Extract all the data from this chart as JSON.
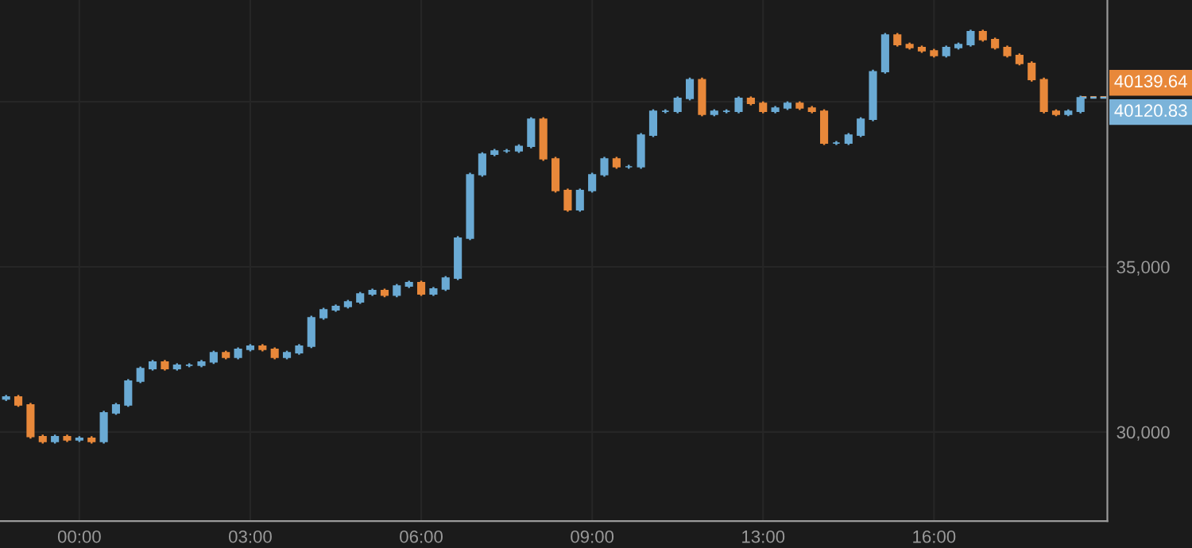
{
  "chart_data": {
    "type": "candlestick",
    "categories": [
      null,
      null,
      null,
      null,
      null,
      null,
      "00:00",
      null,
      null,
      null,
      null,
      null,
      null,
      null,
      null,
      null,
      null,
      null,
      null,
      null,
      "03:00",
      null,
      null,
      null,
      null,
      null,
      null,
      null,
      null,
      null,
      null,
      null,
      null,
      null,
      "06:00",
      null,
      null,
      null,
      null,
      null,
      null,
      null,
      null,
      null,
      null,
      null,
      null,
      null,
      "09:00",
      null,
      null,
      null,
      null,
      null,
      null,
      null,
      null,
      null,
      null,
      null,
      null,
      null,
      "13:00",
      null,
      null,
      null,
      null,
      null,
      null,
      null,
      null,
      null,
      null,
      null,
      null,
      null,
      "16:00",
      null,
      null,
      null,
      null,
      null,
      null,
      null,
      null,
      null,
      null,
      null,
      null
    ],
    "ohlc": [
      [
        31000,
        31120,
        30940,
        31060
      ],
      [
        31060,
        31120,
        30760,
        30820
      ],
      [
        30820,
        30880,
        29800,
        29860
      ],
      [
        29860,
        29920,
        29650,
        29710
      ],
      [
        29710,
        29920,
        29650,
        29860
      ],
      [
        29860,
        29920,
        29700,
        29760
      ],
      [
        29760,
        29870,
        29700,
        29810
      ],
      [
        29810,
        29870,
        29650,
        29710
      ],
      [
        29710,
        30640,
        29650,
        30580
      ],
      [
        30580,
        30880,
        30520,
        30820
      ],
      [
        30820,
        31600,
        30760,
        31540
      ],
      [
        31540,
        31980,
        31480,
        31920
      ],
      [
        31920,
        32180,
        31860,
        32120
      ],
      [
        32120,
        32180,
        31860,
        31920
      ],
      [
        31920,
        32080,
        31860,
        32020
      ],
      [
        32020,
        32080,
        31960,
        32020
      ],
      [
        32020,
        32180,
        31960,
        32120
      ],
      [
        32120,
        32460,
        32060,
        32400
      ],
      [
        32400,
        32460,
        32200,
        32260
      ],
      [
        32260,
        32560,
        32200,
        32500
      ],
      [
        32500,
        32660,
        32440,
        32600
      ],
      [
        32600,
        32660,
        32440,
        32500
      ],
      [
        32500,
        32560,
        32200,
        32260
      ],
      [
        32260,
        32460,
        32200,
        32400
      ],
      [
        32400,
        32660,
        32340,
        32600
      ],
      [
        32600,
        33520,
        32540,
        33460
      ],
      [
        33460,
        33760,
        33400,
        33700
      ],
      [
        33700,
        33860,
        33640,
        33800
      ],
      [
        33800,
        34000,
        33740,
        33940
      ],
      [
        33940,
        34240,
        33880,
        34180
      ],
      [
        34180,
        34340,
        34120,
        34280
      ],
      [
        34280,
        34340,
        34080,
        34140
      ],
      [
        34140,
        34480,
        34080,
        34420
      ],
      [
        34420,
        34580,
        34360,
        34520
      ],
      [
        34520,
        34580,
        34120,
        34180
      ],
      [
        34180,
        34390,
        34120,
        34330
      ],
      [
        34330,
        34720,
        34270,
        34660
      ],
      [
        34660,
        35930,
        34600,
        35870
      ],
      [
        35870,
        37850,
        35810,
        37790
      ],
      [
        37790,
        38470,
        37730,
        38410
      ],
      [
        38410,
        38570,
        38350,
        38510
      ],
      [
        38510,
        38570,
        38450,
        38510
      ],
      [
        38510,
        38710,
        38450,
        38650
      ],
      [
        38650,
        39530,
        38590,
        39470
      ],
      [
        39470,
        39530,
        38210,
        38270
      ],
      [
        38270,
        38330,
        37250,
        37310
      ],
      [
        37310,
        37370,
        36670,
        36730
      ],
      [
        36730,
        37370,
        36670,
        37310
      ],
      [
        37310,
        37850,
        37250,
        37790
      ],
      [
        37790,
        38330,
        37730,
        38270
      ],
      [
        38270,
        38330,
        37970,
        38030
      ],
      [
        38030,
        38090,
        37970,
        38030
      ],
      [
        38030,
        39050,
        37970,
        38990
      ],
      [
        38990,
        39770,
        38930,
        39710
      ],
      [
        39710,
        39770,
        39650,
        39710
      ],
      [
        39710,
        40160,
        39650,
        40100
      ],
      [
        40100,
        40730,
        40040,
        40670
      ],
      [
        40670,
        40730,
        39560,
        39620
      ],
      [
        39620,
        39770,
        39560,
        39710
      ],
      [
        39710,
        39770,
        39650,
        39710
      ],
      [
        39710,
        40160,
        39650,
        40100
      ],
      [
        40100,
        40160,
        39890,
        39950
      ],
      [
        39950,
        40010,
        39650,
        39710
      ],
      [
        39710,
        39870,
        39650,
        39810
      ],
      [
        39810,
        40010,
        39750,
        39950
      ],
      [
        39950,
        40010,
        39750,
        39810
      ],
      [
        39810,
        39870,
        39650,
        39710
      ],
      [
        39710,
        39770,
        38690,
        38750
      ],
      [
        38750,
        38810,
        38690,
        38750
      ],
      [
        38750,
        39050,
        38690,
        38990
      ],
      [
        38990,
        39530,
        38930,
        39470
      ],
      [
        39470,
        40970,
        39410,
        40910
      ],
      [
        40910,
        42080,
        40850,
        42020
      ],
      [
        42020,
        42080,
        41670,
        41730
      ],
      [
        41730,
        41790,
        41580,
        41640
      ],
      [
        41640,
        41700,
        41480,
        41540
      ],
      [
        41540,
        41600,
        41340,
        41400
      ],
      [
        41400,
        41700,
        41340,
        41640
      ],
      [
        41640,
        41790,
        41580,
        41730
      ],
      [
        41730,
        42180,
        41670,
        42120
      ],
      [
        42120,
        42180,
        41820,
        41880
      ],
      [
        41880,
        41940,
        41580,
        41640
      ],
      [
        41640,
        41700,
        41340,
        41400
      ],
      [
        41400,
        41460,
        41100,
        41160
      ],
      [
        41160,
        41220,
        40610,
        40670
      ],
      [
        40670,
        40730,
        39650,
        39710
      ],
      [
        39710,
        39770,
        39560,
        39620
      ],
      [
        39620,
        39770,
        39560,
        39710
      ],
      [
        39710,
        40180,
        39650,
        40120
      ]
    ],
    "colors": [
      "#6aaad4",
      "#e8883a",
      "#e8883a",
      "#e8883a",
      "#6aaad4",
      "#e8883a",
      "#6aaad4",
      "#e8883a",
      "#6aaad4",
      "#6aaad4",
      "#6aaad4",
      "#6aaad4",
      "#6aaad4",
      "#e8883a",
      "#6aaad4",
      "#6aaad4",
      "#6aaad4",
      "#6aaad4",
      "#e8883a",
      "#6aaad4",
      "#6aaad4",
      "#e8883a",
      "#e8883a",
      "#6aaad4",
      "#6aaad4",
      "#6aaad4",
      "#6aaad4",
      "#6aaad4",
      "#6aaad4",
      "#6aaad4",
      "#6aaad4",
      "#e8883a",
      "#6aaad4",
      "#6aaad4",
      "#e8883a",
      "#6aaad4",
      "#6aaad4",
      "#6aaad4",
      "#6aaad4",
      "#6aaad4",
      "#6aaad4",
      "#6aaad4",
      "#6aaad4",
      "#6aaad4",
      "#e8883a",
      "#e8883a",
      "#e8883a",
      "#6aaad4",
      "#6aaad4",
      "#6aaad4",
      "#e8883a",
      "#6aaad4",
      "#6aaad4",
      "#6aaad4",
      "#6aaad4",
      "#6aaad4",
      "#6aaad4",
      "#e8883a",
      "#6aaad4",
      "#6aaad4",
      "#6aaad4",
      "#e8883a",
      "#e8883a",
      "#6aaad4",
      "#6aaad4",
      "#e8883a",
      "#e8883a",
      "#e8883a",
      "#6aaad4",
      "#6aaad4",
      "#6aaad4",
      "#6aaad4",
      "#6aaad4",
      "#e8883a",
      "#e8883a",
      "#e8883a",
      "#e8883a",
      "#6aaad4",
      "#6aaad4",
      "#6aaad4",
      "#e8883a",
      "#e8883a",
      "#e8883a",
      "#e8883a",
      "#e8883a",
      "#e8883a",
      "#e8883a",
      "#6aaad4",
      "#6aaad4"
    ],
    "ylim": [
      27300,
      43080
    ],
    "yticks": [
      {
        "value": 30000,
        "label": "30,000"
      },
      {
        "value": 35000,
        "label": "35,000"
      },
      {
        "value": 40000,
        "label": null
      }
    ],
    "grid": true,
    "ref_lines": [
      {
        "axis": "y",
        "value": 40139.64,
        "label": "40139.64",
        "color": "#e8883a",
        "line_style": "dashed"
      },
      {
        "axis": "y",
        "value": 40120.83,
        "label": "40120.83",
        "color": "#7bb3d9",
        "line_style": "dashed"
      }
    ]
  }
}
